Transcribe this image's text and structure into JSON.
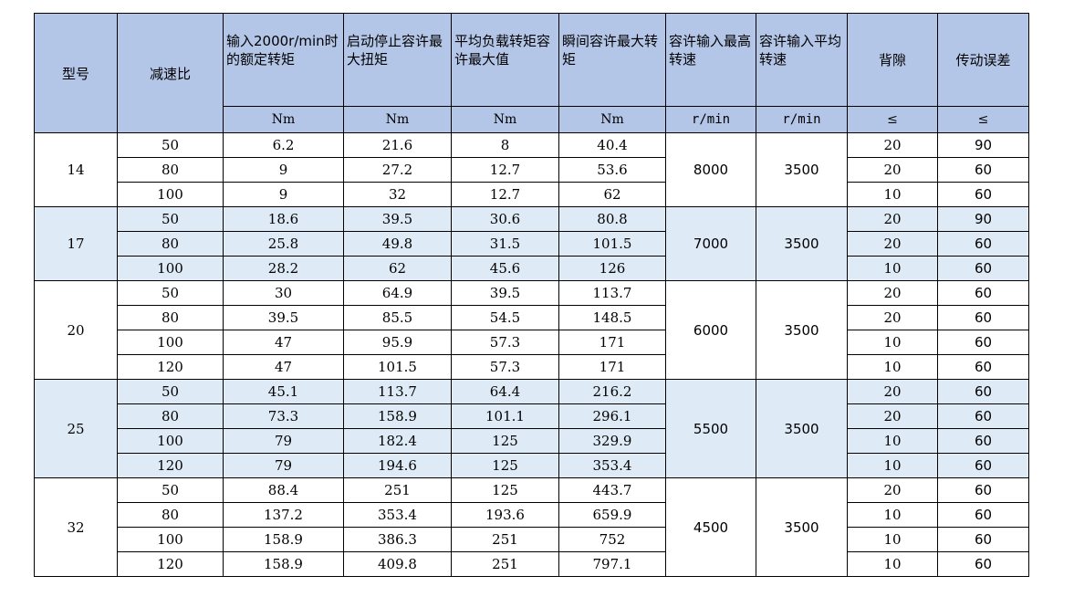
{
  "headers": {
    "model": "型号",
    "ratio": "减速比",
    "rated_torque": "输入2000r/min时的额定转矩",
    "start_stop": "启动停止容许最大扭矩",
    "avg_load": "平均负载转矩容许最大值",
    "instant": "瞬间容许最大转矩",
    "max_speed": "容许输入最高转速",
    "avg_speed": "容许输入平均转速",
    "backlash": "背隙",
    "error": "传动误差"
  },
  "units": {
    "rated_torque": "Nm",
    "start_stop": "Nm",
    "avg_load": "Nm",
    "instant": "Nm",
    "max_speed": "r/min",
    "avg_speed": "r/min",
    "backlash": "≤",
    "error": "≤"
  },
  "groups": [
    {
      "model": "14",
      "max_speed": "8000",
      "avg_speed": "3500",
      "rows": [
        {
          "ratio": "50",
          "rated": "6.2",
          "start": "21.6",
          "avg": "8",
          "instant": "40.4",
          "backlash": "20",
          "error": "90"
        },
        {
          "ratio": "80",
          "rated": "9",
          "start": "27.2",
          "avg": "12.7",
          "instant": "53.6",
          "backlash": "20",
          "error": "60"
        },
        {
          "ratio": "100",
          "rated": "9",
          "start": "32",
          "avg": "12.7",
          "instant": "62",
          "backlash": "10",
          "error": "60"
        }
      ]
    },
    {
      "model": "17",
      "max_speed": "7000",
      "avg_speed": "3500",
      "rows": [
        {
          "ratio": "50",
          "rated": "18.6",
          "start": "39.5",
          "avg": "30.6",
          "instant": "80.8",
          "backlash": "20",
          "error": "90"
        },
        {
          "ratio": "80",
          "rated": "25.8",
          "start": "49.8",
          "avg": "31.5",
          "instant": "101.5",
          "backlash": "20",
          "error": "60"
        },
        {
          "ratio": "100",
          "rated": "28.2",
          "start": "62",
          "avg": "45.6",
          "instant": "126",
          "backlash": "10",
          "error": "60"
        }
      ]
    },
    {
      "model": "20",
      "max_speed": "6000",
      "avg_speed": "3500",
      "rows": [
        {
          "ratio": "50",
          "rated": "30",
          "start": "64.9",
          "avg": "39.5",
          "instant": "113.7",
          "backlash": "20",
          "error": "60"
        },
        {
          "ratio": "80",
          "rated": "39.5",
          "start": "85.5",
          "avg": "54.5",
          "instant": "148.5",
          "backlash": "20",
          "error": "60"
        },
        {
          "ratio": "100",
          "rated": "47",
          "start": "95.9",
          "avg": "57.3",
          "instant": "171",
          "backlash": "10",
          "error": "60"
        },
        {
          "ratio": "120",
          "rated": "47",
          "start": "101.5",
          "avg": "57.3",
          "instant": "171",
          "backlash": "10",
          "error": "60"
        }
      ]
    },
    {
      "model": "25",
      "max_speed": "5500",
      "avg_speed": "3500",
      "rows": [
        {
          "ratio": "50",
          "rated": "45.1",
          "start": "113.7",
          "avg": "64.4",
          "instant": "216.2",
          "backlash": "20",
          "error": "60"
        },
        {
          "ratio": "80",
          "rated": "73.3",
          "start": "158.9",
          "avg": "101.1",
          "instant": "296.1",
          "backlash": "20",
          "error": "60"
        },
        {
          "ratio": "100",
          "rated": "79",
          "start": "182.4",
          "avg": "125",
          "instant": "329.9",
          "backlash": "10",
          "error": "60"
        },
        {
          "ratio": "120",
          "rated": "79",
          "start": "194.6",
          "avg": "125",
          "instant": "353.4",
          "backlash": "10",
          "error": "60"
        }
      ]
    },
    {
      "model": "32",
      "max_speed": "4500",
      "avg_speed": "3500",
      "rows": [
        {
          "ratio": "50",
          "rated": "88.4",
          "start": "251",
          "avg": "125",
          "instant": "443.7",
          "backlash": "20",
          "error": "60"
        },
        {
          "ratio": "80",
          "rated": "137.2",
          "start": "353.4",
          "avg": "193.6",
          "instant": "659.9",
          "backlash": "10",
          "error": "60"
        },
        {
          "ratio": "100",
          "rated": "158.9",
          "start": "386.3",
          "avg": "251",
          "instant": "752",
          "backlash": "10",
          "error": "60"
        },
        {
          "ratio": "120",
          "rated": "158.9",
          "start": "409.8",
          "avg": "251",
          "instant": "797.1",
          "backlash": "10",
          "error": "60"
        }
      ]
    }
  ],
  "colors": {
    "header_bg": "#b4c6e7",
    "alt_group_bg": "#deeaf6",
    "border": "#000000"
  }
}
